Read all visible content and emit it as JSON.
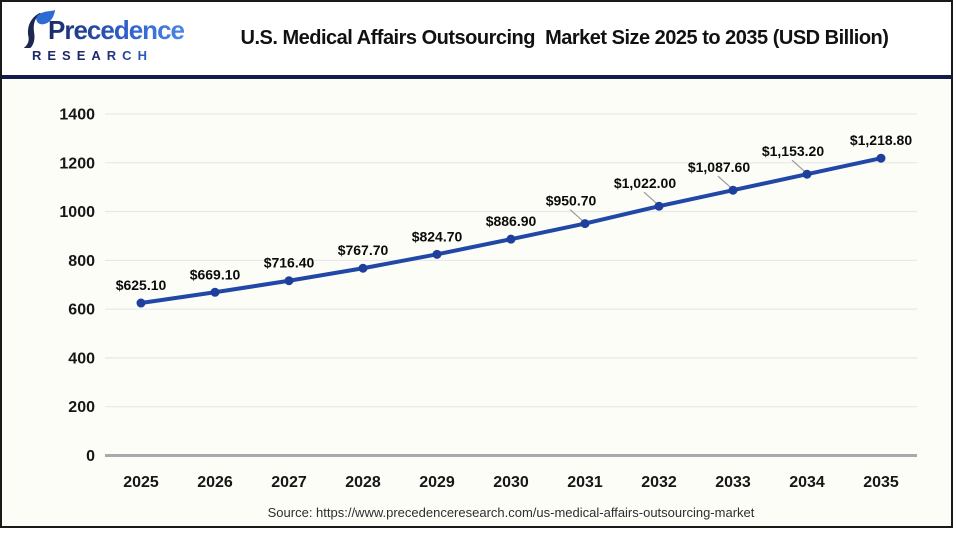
{
  "page": {
    "title": "U.S. Medical Affairs Outsourcing  Market Size 2025 to 2035 (USD Billion)",
    "source_text": "Source: https://www.precedenceresearch.com/us-medical-affairs-outsourcing-market"
  },
  "logo": {
    "brand_name": "Precedence",
    "brand_subtitle": "RESEARCH",
    "navy": "#1b2a66",
    "blue": "#2e62cf"
  },
  "chart_data": {
    "type": "line",
    "title": "U.S. Medical Affairs Outsourcing  Market Size 2025 to 2035 (USD Billion)",
    "xlabel": "",
    "ylabel": "",
    "categories": [
      "2025",
      "2026",
      "2027",
      "2028",
      "2029",
      "2030",
      "2031",
      "2032",
      "2033",
      "2034",
      "2035"
    ],
    "series": [
      {
        "name": "U.S. Medical Affairs Outsourcing Market Size (USD Billion)",
        "values": [
          625.1,
          669.1,
          716.4,
          767.7,
          824.7,
          886.9,
          950.7,
          1022.0,
          1087.6,
          1153.2,
          1218.8
        ]
      }
    ],
    "value_labels": [
      "$625.10",
      "$669.10",
      "$716.40",
      "$767.70",
      "$824.70",
      "$886.90",
      "$950.70",
      "$1,022.00",
      "$1,087.60",
      "$1,153.20",
      "$1,218.80"
    ],
    "ylim": [
      0,
      1400
    ],
    "yticks": [
      0,
      200,
      400,
      600,
      800,
      1000,
      1200,
      1400
    ],
    "grid": true,
    "legend": "none",
    "line_color": "#2148a6",
    "point_color": "#1e3f9c",
    "grid_color": "#e8e8e8",
    "axis_color": "#a9a9a9",
    "leader_color": "#9a9a9a",
    "label_color": "#0b0b0b"
  }
}
